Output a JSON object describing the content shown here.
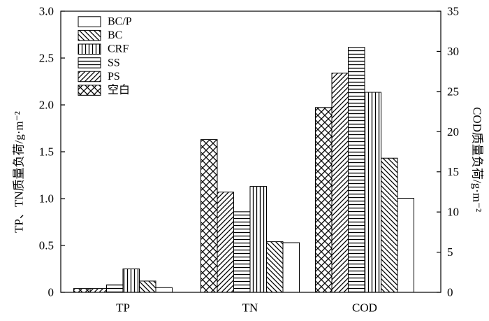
{
  "chart_data": {
    "type": "bar",
    "categories": [
      "TP",
      "TN",
      "COD"
    ],
    "series": [
      {
        "name": "空白",
        "pattern": "crosshatch",
        "values": [
          0.04,
          1.63,
          23.0
        ]
      },
      {
        "name": "PS",
        "pattern": "diag-up",
        "values": [
          0.04,
          1.07,
          27.3
        ]
      },
      {
        "name": "SS",
        "pattern": "horizontal",
        "values": [
          0.08,
          0.86,
          30.5
        ]
      },
      {
        "name": "CRF",
        "pattern": "vertical",
        "values": [
          0.25,
          1.13,
          24.9
        ]
      },
      {
        "name": "BC",
        "pattern": "diag-down",
        "values": [
          0.12,
          0.54,
          16.7
        ]
      },
      {
        "name": "BC/P",
        "pattern": "blank",
        "values": [
          0.05,
          0.53,
          11.7
        ]
      }
    ],
    "value_axis_for_category": [
      "left",
      "left",
      "right"
    ],
    "y_left": {
      "label": "TP、TN质量负荷/g·m⁻²",
      "lim": [
        0,
        3.0
      ],
      "ticks": [
        "0",
        "0.5",
        "1.0",
        "1.5",
        "2.0",
        "2.5",
        "3.0"
      ]
    },
    "y_right": {
      "label": "COD质量负荷/g·m⁻²",
      "lim": [
        0,
        35
      ],
      "ticks": [
        "0",
        "5",
        "10",
        "15",
        "20",
        "25",
        "30",
        "35"
      ]
    },
    "legend_order": [
      "BC/P",
      "BC",
      "CRF",
      "SS",
      "PS",
      "空白"
    ],
    "legend_placement": "top-left",
    "grid": false,
    "colors": {
      "bar_fill": "#ffffff",
      "stroke": "#000000"
    }
  }
}
